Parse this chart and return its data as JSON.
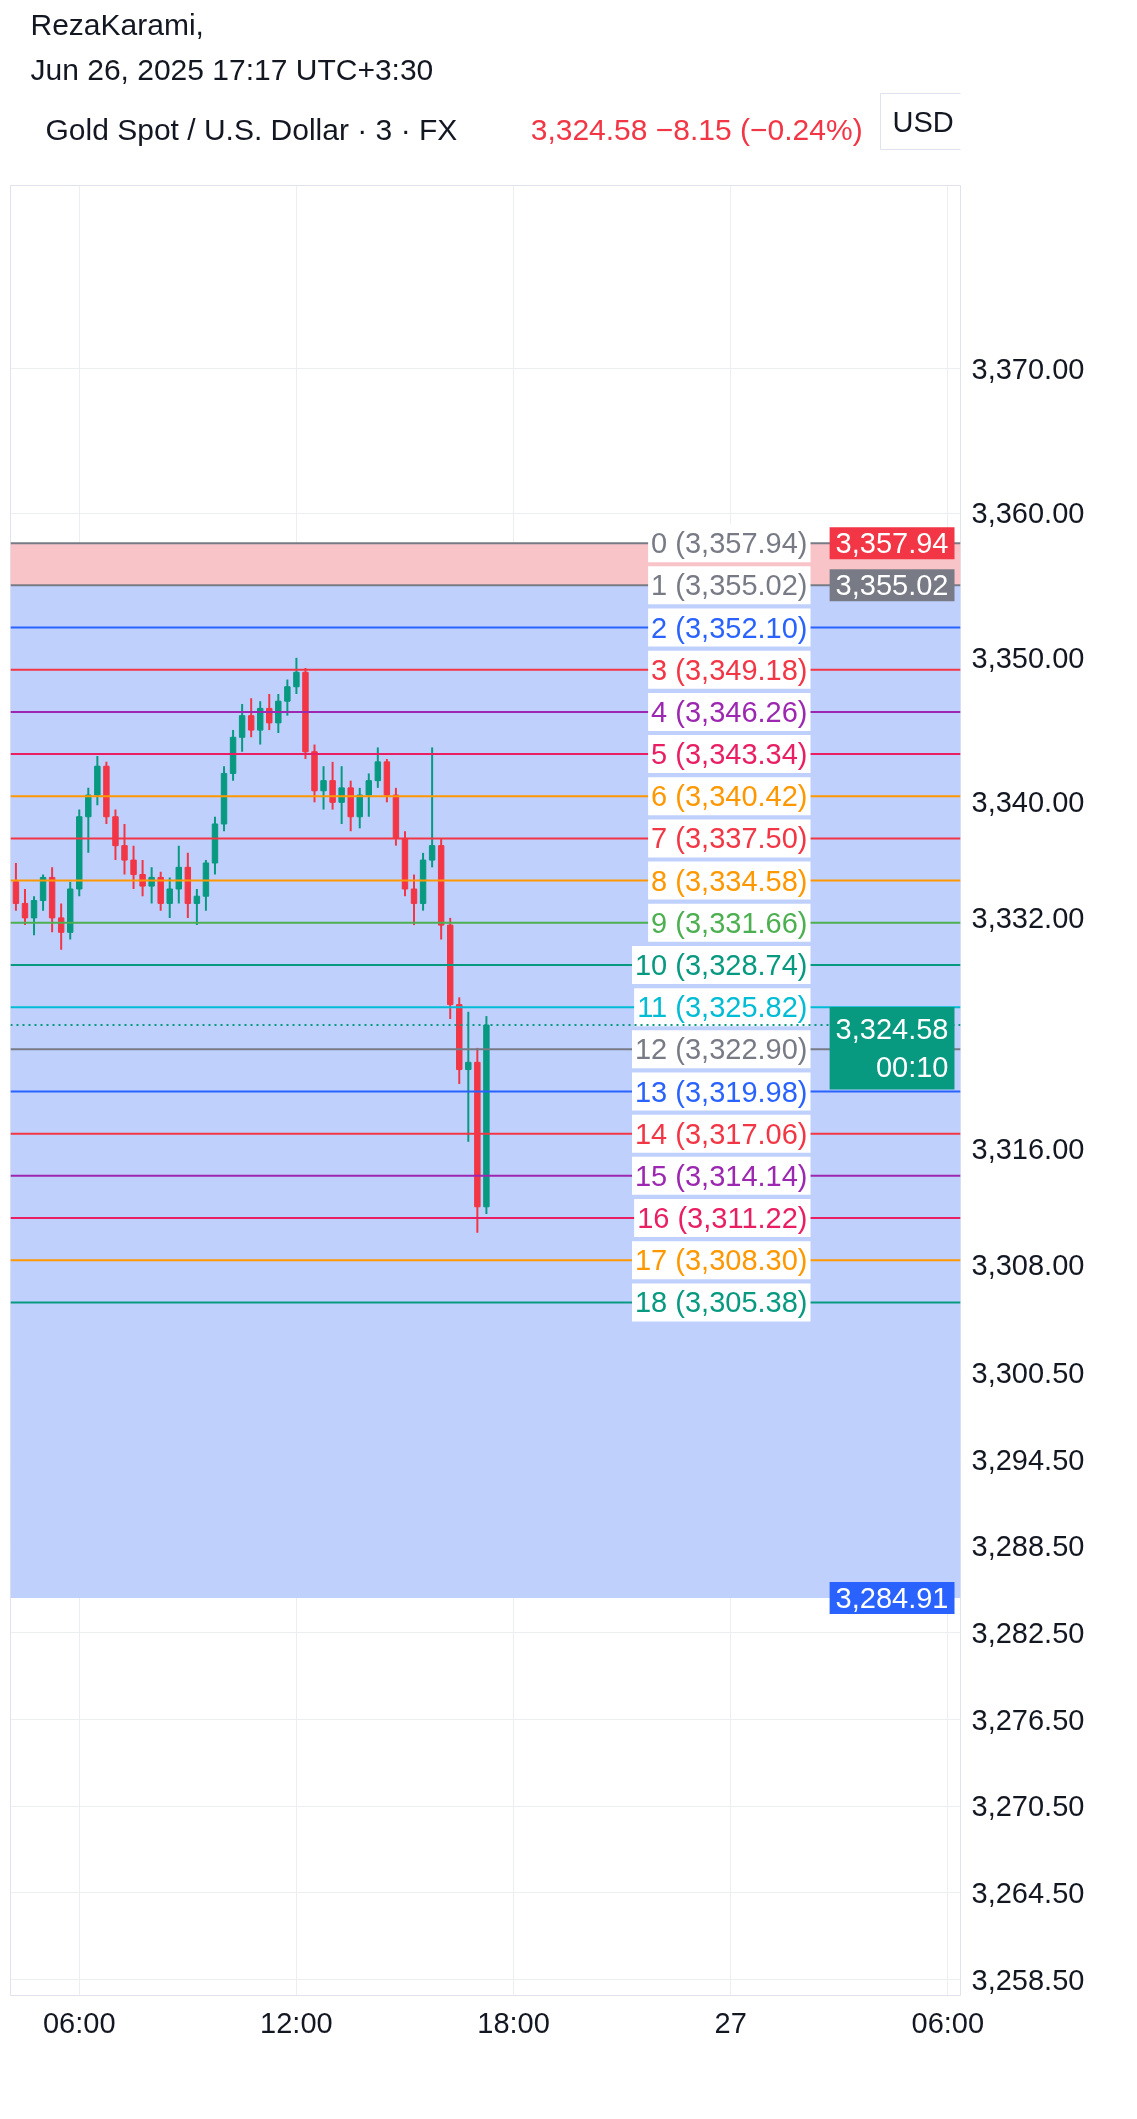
{
  "chart_data": {
    "type": "candlestick",
    "title": "Gold Spot / U.S. Dollar · 3 · FX",
    "subtitle": "3,324.58  −8.15 (−0.24%)",
    "ylabel": "USD",
    "annotations": [
      "RezaKarami,",
      "Jun 26, 2025 17:17 UTC+3:30",
      "3,355.02"
    ],
    "x": [
      "2025-06-26T04:15",
      "2025-06-26T04:30",
      "2025-06-26T04:45",
      "2025-06-26T05:00",
      "2025-06-26T05:15",
      "2025-06-26T05:30",
      "2025-06-26T05:45",
      "2025-06-26T06:00",
      "2025-06-26T06:15",
      "2025-06-26T06:30",
      "2025-06-26T06:45",
      "2025-06-26T07:00",
      "2025-06-26T07:15",
      "2025-06-26T07:30",
      "2025-06-26T07:45",
      "2025-06-26T08:00",
      "2025-06-26T08:15",
      "2025-06-26T08:30",
      "2025-06-26T08:45",
      "2025-06-26T09:00",
      "2025-06-26T09:15",
      "2025-06-26T09:30",
      "2025-06-26T09:45",
      "2025-06-26T10:00",
      "2025-06-26T10:15",
      "2025-06-26T10:30",
      "2025-06-26T10:45",
      "2025-06-26T11:00",
      "2025-06-26T11:15",
      "2025-06-26T11:30",
      "2025-06-26T11:45",
      "2025-06-26T12:00",
      "2025-06-26T12:15",
      "2025-06-26T12:30",
      "2025-06-26T12:45",
      "2025-06-26T13:00",
      "2025-06-26T13:15",
      "2025-06-26T13:30",
      "2025-06-26T13:45",
      "2025-06-26T14:00",
      "2025-06-26T14:15",
      "2025-06-26T14:30",
      "2025-06-26T14:45",
      "2025-06-26T15:00",
      "2025-06-26T15:15",
      "2025-06-26T15:30",
      "2025-06-26T15:45",
      "2025-06-26T16:00",
      "2025-06-26T16:15",
      "2025-06-26T16:30",
      "2025-06-26T16:45",
      "2025-06-26T17:00",
      "2025-06-26T17:15"
    ],
    "ohlc": [
      [
        3334.5,
        3335.8,
        3332.5,
        3333.0
      ],
      [
        3333.0,
        3334.0,
        3331.5,
        3332.0
      ],
      [
        3332.0,
        3333.5,
        3330.8,
        3333.2
      ],
      [
        3333.2,
        3335.0,
        3332.5,
        3334.8
      ],
      [
        3334.8,
        3335.5,
        3331.0,
        3332.0
      ],
      [
        3332.0,
        3333.0,
        3329.8,
        3331.0
      ],
      [
        3331.0,
        3334.5,
        3330.5,
        3334.0
      ],
      [
        3334.0,
        3339.5,
        3333.5,
        3339.0
      ],
      [
        3339.0,
        3341.0,
        3336.5,
        3340.5
      ],
      [
        3340.5,
        3343.2,
        3339.8,
        3342.5
      ],
      [
        3342.5,
        3342.8,
        3338.5,
        3339.0
      ],
      [
        3339.0,
        3339.5,
        3336.0,
        3337.0
      ],
      [
        3337.0,
        3338.5,
        3335.0,
        3336.0
      ],
      [
        3336.0,
        3337.0,
        3334.0,
        3335.0
      ],
      [
        3335.0,
        3336.0,
        3333.5,
        3334.2
      ],
      [
        3334.2,
        3335.5,
        3333.0,
        3334.8
      ],
      [
        3334.8,
        3335.2,
        3332.5,
        3333.0
      ],
      [
        3333.0,
        3334.8,
        3332.0,
        3334.0
      ],
      [
        3334.0,
        3337.0,
        3333.0,
        3335.5
      ],
      [
        3335.5,
        3336.5,
        3332.0,
        3333.0
      ],
      [
        3333.0,
        3334.0,
        3331.5,
        3333.5
      ],
      [
        3333.5,
        3336.0,
        3332.5,
        3335.8
      ],
      [
        3335.8,
        3339.0,
        3335.0,
        3338.5
      ],
      [
        3338.5,
        3342.5,
        3338.0,
        3342.0
      ],
      [
        3342.0,
        3345.0,
        3341.5,
        3344.5
      ],
      [
        3344.5,
        3346.8,
        3343.5,
        3346.0
      ],
      [
        3346.0,
        3347.2,
        3344.5,
        3345.0
      ],
      [
        3345.0,
        3347.0,
        3344.0,
        3346.5
      ],
      [
        3346.5,
        3347.5,
        3345.0,
        3345.5
      ],
      [
        3345.5,
        3347.5,
        3344.8,
        3347.0
      ],
      [
        3347.0,
        3348.5,
        3346.0,
        3348.0
      ],
      [
        3348.0,
        3350.0,
        3347.5,
        3349.0
      ],
      [
        3349.0,
        3349.3,
        3343.0,
        3343.5
      ],
      [
        3343.5,
        3344.0,
        3340.0,
        3340.8
      ],
      [
        3340.8,
        3342.5,
        3339.5,
        3341.5
      ],
      [
        3341.5,
        3342.8,
        3339.5,
        3340.0
      ],
      [
        3340.0,
        3342.5,
        3338.5,
        3341.0
      ],
      [
        3341.0,
        3341.5,
        3338.0,
        3339.0
      ],
      [
        3339.0,
        3341.0,
        3338.2,
        3340.5
      ],
      [
        3340.5,
        3342.0,
        3339.0,
        3341.5
      ],
      [
        3341.5,
        3343.8,
        3341.0,
        3342.8
      ],
      [
        3342.8,
        3343.0,
        3340.0,
        3340.5
      ],
      [
        3340.5,
        3341.0,
        3337.0,
        3337.5
      ],
      [
        3337.5,
        3338.0,
        3333.5,
        3334.0
      ],
      [
        3334.0,
        3335.0,
        3331.5,
        3333.0
      ],
      [
        3333.0,
        3336.5,
        3332.5,
        3336.0
      ],
      [
        3336.0,
        3343.8,
        3335.5,
        3337.0
      ],
      [
        3337.0,
        3337.5,
        3330.5,
        3331.5
      ],
      [
        3331.5,
        3332.0,
        3325.0,
        3326.0
      ],
      [
        3326.0,
        3326.5,
        3320.5,
        3321.5
      ],
      [
        3321.5,
        3325.5,
        3316.5,
        3322.0
      ],
      [
        3322.0,
        3323.0,
        3310.2,
        3312.0
      ],
      [
        3312.0,
        3325.2,
        3311.5,
        3324.58
      ]
    ],
    "colors": [
      "#f23645",
      "#f23645",
      "#089981",
      "#089981",
      "#f23645",
      "#f23645",
      "#089981",
      "#089981",
      "#089981",
      "#089981",
      "#f23645",
      "#f23645",
      "#f23645",
      "#f23645",
      "#f23645",
      "#089981",
      "#f23645",
      "#089981",
      "#089981",
      "#f23645",
      "#089981",
      "#089981",
      "#089981",
      "#089981",
      "#089981",
      "#089981",
      "#f23645",
      "#089981",
      "#f23645",
      "#089981",
      "#089981",
      "#089981",
      "#f23645",
      "#f23645",
      "#089981",
      "#f23645",
      "#089981",
      "#f23645",
      "#089981",
      "#089981",
      "#089981",
      "#f23645",
      "#f23645",
      "#f23645",
      "#f23645",
      "#089981",
      "#089981",
      "#f23645",
      "#f23645",
      "#f23645",
      "#089981",
      "#f23645",
      "#089981"
    ],
    "xlim": [
      "2025-06-26T04:06",
      "2025-06-27T06:21"
    ],
    "xticks": [
      {
        "value": "2025-06-26T06:00",
        "label": "06:00"
      },
      {
        "value": "2025-06-26T12:00",
        "label": "12:00"
      },
      {
        "value": "2025-06-26T18:00",
        "label": "18:00"
      },
      {
        "value": "2025-06-27",
        "label": "27"
      },
      {
        "value": "2025-06-27T06:00",
        "label": "06:00"
      }
    ],
    "ylim": [
      3257.4,
      3382.7
    ],
    "yticks": [
      {
        "value": 3370,
        "label": "3,370.00"
      },
      {
        "value": 3360,
        "label": "3,360.00"
      },
      {
        "value": 3350,
        "label": "3,350.00"
      },
      {
        "value": 3340,
        "label": "3,340.00"
      },
      {
        "value": 3332,
        "label": "3,332.00"
      },
      {
        "value": 3316,
        "label": "3,316.00"
      },
      {
        "value": 3308,
        "label": "3,308.00"
      },
      {
        "value": 3300.5,
        "label": "3,300.50"
      },
      {
        "value": 3294.5,
        "label": "3,294.50"
      },
      {
        "value": 3288.5,
        "label": "3,288.50"
      },
      {
        "value": 3282.5,
        "label": "3,282.50"
      },
      {
        "value": 3276.5,
        "label": "3,276.50"
      },
      {
        "value": 3270.5,
        "label": "3,270.50"
      },
      {
        "value": 3264.5,
        "label": "3,264.50"
      },
      {
        "value": 3258.5,
        "label": "3,258.50"
      }
    ],
    "grid": true,
    "bands": [
      {
        "axis": "y",
        "from": 3355.02,
        "to": 3357.94,
        "color": "#f9c4c8",
        "label": "3,357.94"
      },
      {
        "axis": "y",
        "from": 3284.91,
        "to": 3355.02,
        "color": "#bfd0fc",
        "label": "3,284.91"
      }
    ],
    "ref_lines": [
      {
        "axis": "y",
        "value": 3357.94,
        "label": "0 (3,357.94)",
        "color": "#787b86"
      },
      {
        "axis": "y",
        "value": 3355.02,
        "label": "1 (3,355.02)",
        "color": "#787b86"
      },
      {
        "axis": "y",
        "value": 3352.1,
        "label": "2 (3,352.10)",
        "color": "#2962ff"
      },
      {
        "axis": "y",
        "value": 3349.18,
        "label": "3 (3,349.18)",
        "color": "#f23645"
      },
      {
        "axis": "y",
        "value": 3346.26,
        "label": "4 (3,346.26)",
        "color": "#9c27b0"
      },
      {
        "axis": "y",
        "value": 3343.34,
        "label": "5 (3,343.34)",
        "color": "#e91e63"
      },
      {
        "axis": "y",
        "value": 3340.42,
        "label": "6 (3,340.42)",
        "color": "#ff9800"
      },
      {
        "axis": "y",
        "value": 3337.5,
        "label": "7 (3,337.50)",
        "color": "#f23645"
      },
      {
        "axis": "y",
        "value": 3334.58,
        "label": "8 (3,334.58)",
        "color": "#ff9800"
      },
      {
        "axis": "y",
        "value": 3331.66,
        "label": "9 (3,331.66)",
        "color": "#4caf50"
      },
      {
        "axis": "y",
        "value": 3328.74,
        "label": "10 (3,328.74)",
        "color": "#089981"
      },
      {
        "axis": "y",
        "value": 3325.82,
        "label": "11 (3,325.82)",
        "color": "#00bcd4"
      },
      {
        "axis": "y",
        "value": 3322.9,
        "label": "12 (3,322.90)",
        "color": "#787b86"
      },
      {
        "axis": "y",
        "value": 3319.98,
        "label": "13 (3,319.98)",
        "color": "#2962ff"
      },
      {
        "axis": "y",
        "value": 3317.06,
        "label": "14 (3,317.06)",
        "color": "#f23645"
      },
      {
        "axis": "y",
        "value": 3314.14,
        "label": "15 (3,314.14)",
        "color": "#9c27b0"
      },
      {
        "axis": "y",
        "value": 3311.22,
        "label": "16 (3,311.22)",
        "color": "#e91e63"
      },
      {
        "axis": "y",
        "value": 3308.3,
        "label": "17 (3,308.30)",
        "color": "#ff9800"
      },
      {
        "axis": "y",
        "value": 3305.38,
        "label": "18 (3,305.38)",
        "color": "#089981"
      },
      {
        "axis": "y",
        "value": 3324.58,
        "label": "3,324.58\n00:10",
        "color": "#089981",
        "line_style": "dotted"
      }
    ]
  }
}
